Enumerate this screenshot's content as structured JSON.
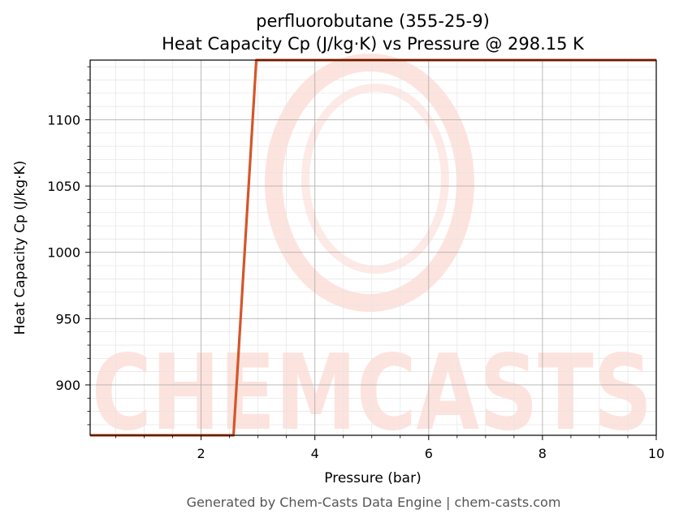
{
  "chart_data": {
    "type": "line",
    "title": "perfluorobutane (355-25-9)",
    "subtitle": "Heat Capacity Cp (J/kg·K) vs Pressure @ 298.15 K",
    "xlabel": "Pressure (bar)",
    "ylabel": "Heat Capacity Cp (J/kg·K)",
    "xlim": [
      0.05,
      10
    ],
    "ylim": [
      862,
      1145
    ],
    "x_ticks": [
      2,
      4,
      6,
      8,
      10
    ],
    "x_tick_labels": [
      "2",
      "4",
      "6",
      "8",
      "10"
    ],
    "y_ticks": [
      900,
      950,
      1000,
      1050,
      1100
    ],
    "y_tick_labels": [
      "900",
      "950",
      "1000",
      "1050",
      "1100"
    ],
    "grid": true,
    "series": [
      {
        "color": "#d4562a",
        "x": [
          0.05,
          2.57,
          2.97,
          10
        ],
        "y": [
          862,
          862,
          1145,
          1145
        ]
      }
    ]
  },
  "footer": "Generated by Chem-Casts Data Engine | chem-casts.com",
  "watermark": "CHEMCASTS",
  "colors": {
    "line": "#d4562a",
    "watermark": "#fde3de",
    "grid_major": "#b0b0b0",
    "grid_minor": "#e4e4e4"
  }
}
